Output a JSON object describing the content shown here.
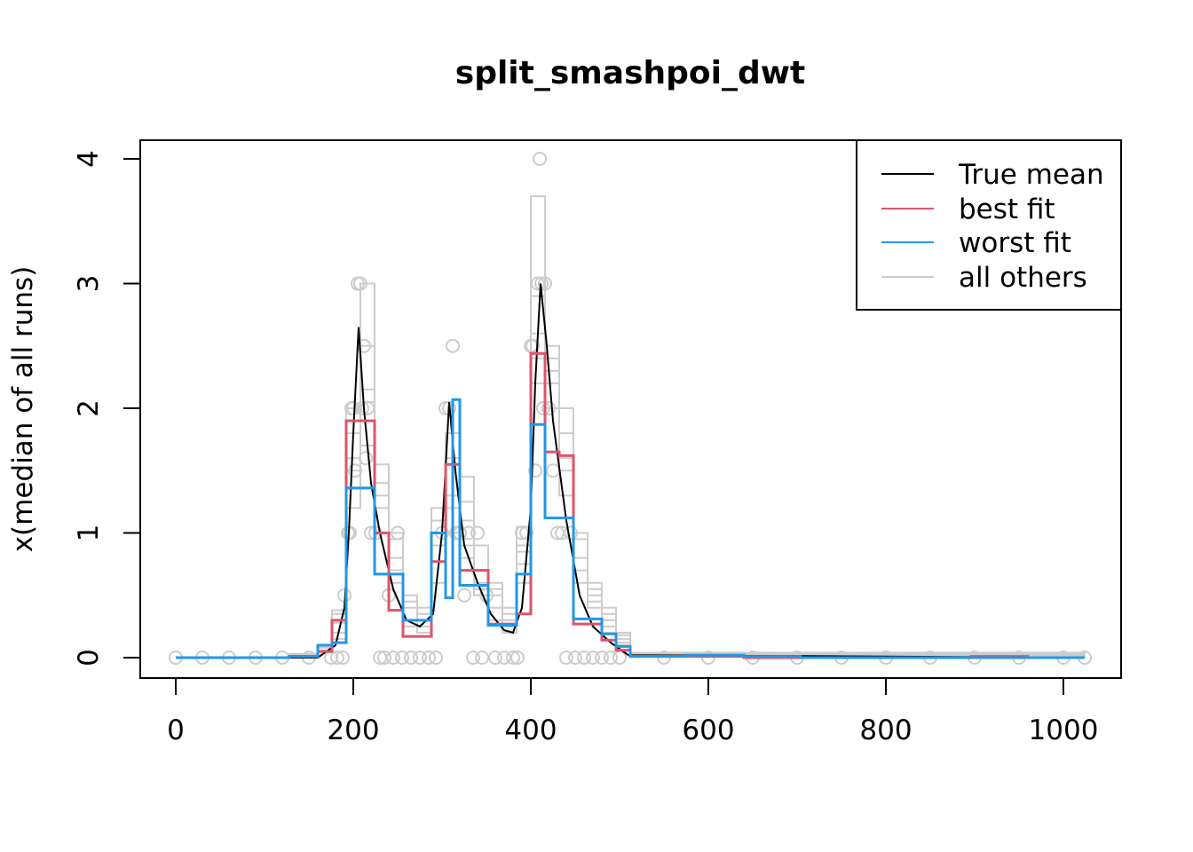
{
  "chart_data": {
    "type": "line",
    "title": "split_smashpoi_dwt",
    "xlabel": "",
    "ylabel": "x(median of all runs)",
    "xlim": [
      0,
      1024
    ],
    "ylim": [
      0,
      4
    ],
    "xticks": [
      0,
      200,
      400,
      600,
      800,
      1000
    ],
    "yticks": [
      0,
      1,
      2,
      3,
      4
    ],
    "x_tick_labels": [
      "0",
      "200",
      "400",
      "600",
      "800",
      "1000"
    ],
    "y_tick_labels": [
      "0",
      "1",
      "2",
      "3",
      "4"
    ],
    "legend": {
      "position": "top-right",
      "entries": [
        {
          "label": "True mean",
          "color": "#000000"
        },
        {
          "label": "best fit",
          "color": "#DF536B"
        },
        {
          "label": "worst fit",
          "color": "#2297E6"
        },
        {
          "label": "all others",
          "color": "#CCCCCC"
        }
      ]
    },
    "series": [
      {
        "name": "True mean",
        "color": "#000000",
        "style": "line",
        "x": [
          0,
          160,
          180,
          190,
          195,
          200,
          206,
          212,
          220,
          230,
          245,
          260,
          275,
          290,
          300,
          308,
          315,
          325,
          340,
          355,
          370,
          380,
          390,
          400,
          405,
          411,
          418,
          425,
          440,
          455,
          470,
          490,
          510,
          1024
        ],
        "y": [
          0,
          0,
          0.1,
          0.4,
          1.0,
          1.8,
          2.65,
          2.0,
          1.4,
          1.0,
          0.55,
          0.3,
          0.25,
          0.35,
          1.0,
          2.05,
          1.5,
          0.9,
          0.6,
          0.35,
          0.22,
          0.2,
          0.4,
          1.2,
          2.2,
          3.0,
          2.5,
          1.9,
          1.1,
          0.5,
          0.25,
          0.12,
          0.02,
          0
        ]
      },
      {
        "name": "best fit",
        "color": "#DF536B",
        "style": "step",
        "x": [
          0,
          128,
          160,
          176,
          192,
          224,
          240,
          256,
          288,
          304,
          320,
          336,
          352,
          368,
          384,
          400,
          416,
          432,
          448,
          480,
          496,
          512,
          640,
          768,
          896,
          960,
          1024
        ],
        "y": [
          0,
          0.01,
          0.05,
          0.3,
          1.9,
          1.0,
          0.38,
          0.17,
          0.77,
          1.55,
          0.7,
          0.7,
          0.27,
          0.27,
          0.35,
          2.44,
          1.65,
          1.62,
          0.27,
          0.14,
          0.06,
          0.01,
          0,
          0,
          0.01,
          0,
          0
        ]
      },
      {
        "name": "worst fit",
        "color": "#2297E6",
        "style": "step",
        "x": [
          0,
          128,
          160,
          176,
          192,
          224,
          256,
          288,
          304,
          312,
          320,
          352,
          384,
          400,
          416,
          448,
          480,
          496,
          512,
          576,
          640,
          704,
          1024
        ],
        "y": [
          0,
          0.01,
          0.1,
          0.12,
          1.36,
          0.67,
          0.3,
          1.0,
          0.48,
          2.07,
          0.58,
          0.26,
          0.67,
          1.87,
          1.12,
          0.31,
          0.19,
          0.09,
          0.01,
          0.02,
          0.01,
          0,
          0
        ]
      },
      {
        "name": "all others",
        "color": "#CCCCCC",
        "style": "step",
        "runs": [
          {
            "x": [
              0,
              128,
              160,
              176,
              192,
              208,
              224,
              240,
              256,
              272,
              288,
              304,
              320,
              336,
              352,
              368,
              384,
              400,
              416,
              432,
              448,
              464,
              480,
              496,
              512,
              1024
            ],
            "y": [
              0,
              0.02,
              0.06,
              0.2,
              1.6,
              2.05,
              1.4,
              0.95,
              0.45,
              0.3,
              1.1,
              1.8,
              0.9,
              0.6,
              0.4,
              0.3,
              0.75,
              2.9,
              2.3,
              2.0,
              0.8,
              0.5,
              0.3,
              0.15,
              0.03,
              0
            ]
          },
          {
            "x": [
              0,
              128,
              160,
              176,
              192,
              208,
              224,
              240,
              256,
              272,
              288,
              304,
              320,
              336,
              352,
              368,
              384,
              400,
              416,
              432,
              448,
              464,
              480,
              496,
              512,
              1024
            ],
            "y": [
              0,
              0.01,
              0.08,
              0.35,
              1.8,
              2.5,
              1.2,
              0.8,
              0.3,
              0.2,
              0.9,
              1.3,
              1.1,
              0.7,
              0.5,
              0.2,
              1.05,
              2.4,
              2.5,
              1.5,
              0.95,
              0.6,
              0.35,
              0.2,
              0.04,
              0
            ]
          },
          {
            "x": [
              0,
              128,
              160,
              176,
              192,
              208,
              224,
              240,
              256,
              272,
              288,
              304,
              320,
              336,
              352,
              368,
              384,
              400,
              416,
              432,
              448,
              464,
              480,
              496,
              512,
              1024
            ],
            "y": [
              0,
              0.03,
              0.05,
              0.15,
              1.2,
              2.15,
              1.0,
              0.6,
              0.4,
              0.4,
              1.2,
              1.0,
              1.45,
              0.55,
              0.6,
              0.35,
              0.6,
              3.7,
              2.0,
              1.3,
              0.7,
              0.4,
              0.25,
              0.1,
              0.02,
              0
            ]
          },
          {
            "x": [
              0,
              128,
              160,
              176,
              192,
              208,
              224,
              240,
              256,
              272,
              288,
              304,
              320,
              336,
              352,
              368,
              384,
              400,
              416,
              432,
              448,
              464,
              480,
              496,
              512,
              1024
            ],
            "y": [
              0,
              0.02,
              0.1,
              0.28,
              2.0,
              3.0,
              1.55,
              0.7,
              0.25,
              0.25,
              0.6,
              1.6,
              0.8,
              0.9,
              0.3,
              0.25,
              0.9,
              2.6,
              2.2,
              1.8,
              1.0,
              0.45,
              0.4,
              0.18,
              0.02,
              0
            ]
          },
          {
            "x": [
              0,
              128,
              160,
              176,
              192,
              208,
              224,
              240,
              256,
              272,
              288,
              304,
              320,
              336,
              352,
              368,
              384,
              400,
              416,
              432,
              448,
              464,
              480,
              496,
              512,
              1024
            ],
            "y": [
              0,
              0.01,
              0.04,
              0.38,
              1.5,
              1.7,
              1.3,
              1.0,
              0.5,
              0.35,
              1.0,
              1.2,
              1.25,
              0.5,
              0.55,
              0.4,
              0.85,
              2.2,
              2.4,
              1.6,
              0.6,
              0.55,
              0.2,
              0.12,
              0.03,
              0
            ]
          }
        ]
      }
    ],
    "observations": {
      "color": "#CCCCCC",
      "x": [
        0,
        30,
        60,
        90,
        120,
        150,
        175,
        182,
        188,
        190,
        194,
        196,
        198,
        200,
        202,
        205,
        208,
        210,
        212,
        214,
        216,
        220,
        225,
        230,
        235,
        240,
        245,
        250,
        255,
        265,
        275,
        285,
        293,
        300,
        304,
        308,
        312,
        316,
        320,
        325,
        330,
        335,
        340,
        345,
        350,
        360,
        370,
        380,
        385,
        390,
        395,
        400,
        402,
        405,
        408,
        410,
        412,
        414,
        416,
        420,
        425,
        430,
        435,
        440,
        445,
        450,
        460,
        470,
        480,
        490,
        500,
        550,
        600,
        650,
        700,
        750,
        800,
        850,
        900,
        950,
        1000,
        1024
      ],
      "y": [
        0,
        0,
        0,
        0,
        0,
        0,
        0,
        0,
        0,
        0.5,
        1,
        1,
        2,
        2,
        1.5,
        3,
        3,
        2,
        2.5,
        1.6,
        2,
        1,
        1,
        0,
        0,
        0.5,
        0,
        1,
        0,
        0,
        0,
        0,
        0,
        1,
        2,
        2,
        2.5,
        1,
        1,
        0.5,
        1,
        0,
        1,
        0,
        0.5,
        0,
        0,
        0,
        0,
        1,
        1,
        2.5,
        2.5,
        1.5,
        3,
        4,
        3,
        2,
        3,
        2,
        1.5,
        1,
        1,
        0,
        1,
        0,
        0,
        0,
        0,
        0,
        0,
        0,
        0,
        0,
        0,
        0,
        0,
        0,
        0,
        0,
        0,
        0
      ]
    }
  }
}
